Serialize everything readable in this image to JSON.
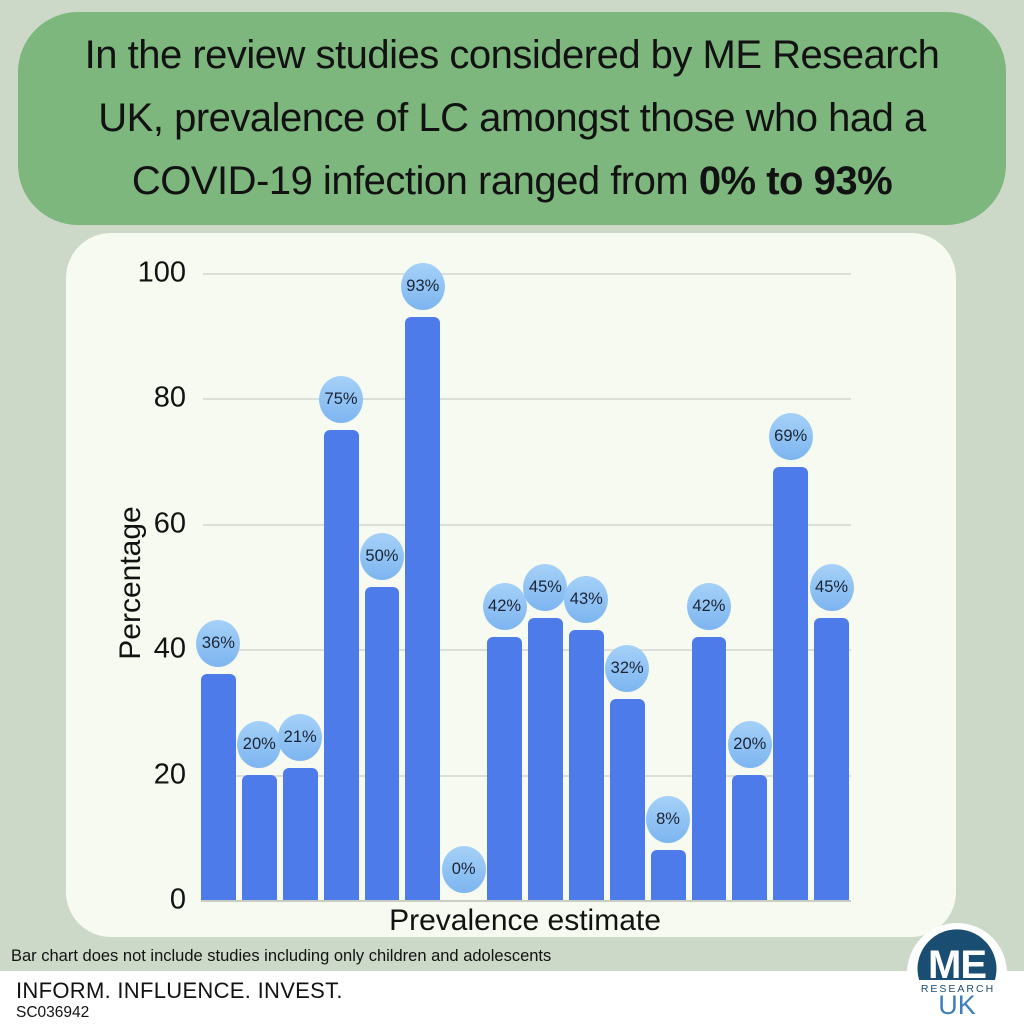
{
  "header": {
    "line1": "In the review studies considered by ME Research",
    "line2": "UK, prevalence of LC amongst those who had a",
    "line3_prefix": "COVID-19 infection ranged from ",
    "line3_bold": "0% to 93%"
  },
  "chart_data": {
    "type": "bar",
    "title": "",
    "xlabel": "Prevalence estimate",
    "ylabel": "Percentage",
    "ylim": [
      0,
      100
    ],
    "yticks": [
      0,
      20,
      40,
      60,
      80,
      100
    ],
    "values": [
      36,
      20,
      21,
      75,
      50,
      93,
      0,
      42,
      45,
      43,
      32,
      8,
      42,
      20,
      69,
      45
    ],
    "labels": [
      "36%",
      "20%",
      "21%",
      "75%",
      "50%",
      "93%",
      "0%",
      "42%",
      "45%",
      "43%",
      "32%",
      "8%",
      "42%",
      "20%",
      "69%",
      "45%"
    ],
    "grid": true,
    "legend": "none",
    "annotation_style": "value-in-circle-above-each-bar"
  },
  "footer": {
    "note": "Bar chart does not include studies including only children and adolescents",
    "tagline": "INFORM. INFLUENCE. INVEST.",
    "charity_number": "SC036942"
  },
  "logo": {
    "me": "ME",
    "research": "RESEARCH",
    "uk": "UK"
  },
  "colors": {
    "bg_sage": "#cdd9c8",
    "header_green": "#7db77e",
    "panel_cream": "#f7faf0",
    "ink": "#121212",
    "gridline": "#dcdfd7",
    "axis_line": "#c9cdc4",
    "bar_blue": "#4d7cea",
    "bubble_light": "#a5d1f8",
    "bubble_dark": "#7db5f0",
    "bubble_ink": "#1b2435",
    "logo_navy": "#1a4d72",
    "logo_blue": "#3d7ec1"
  }
}
